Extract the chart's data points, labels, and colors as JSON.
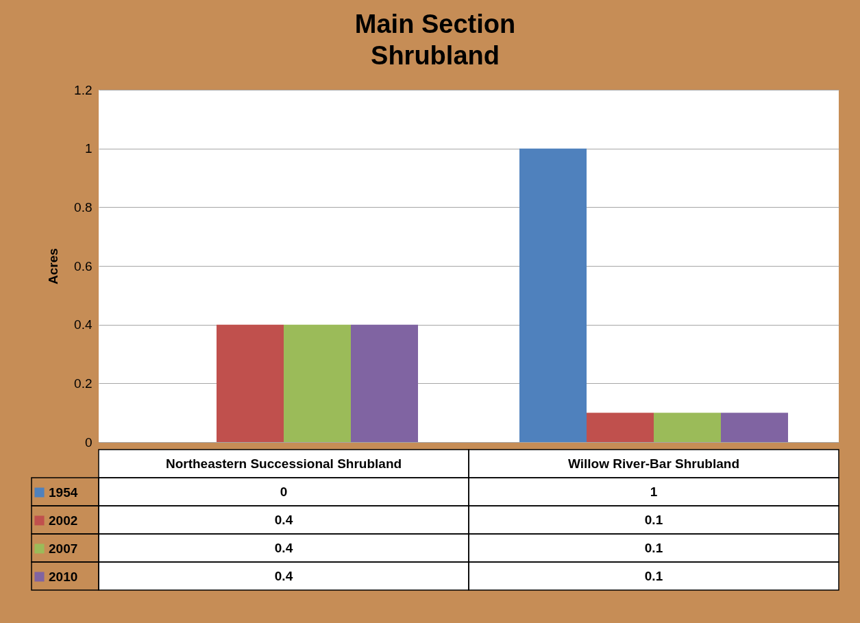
{
  "chart_data": {
    "type": "bar",
    "title": "Main Section",
    "subtitle": "Shrubland",
    "ylabel": "Acres",
    "categories": [
      "Northeastern Successional Shrubland",
      "Willow River-Bar Shrubland"
    ],
    "series": [
      {
        "name": "1954",
        "color": "#4f81bd",
        "values": [
          0,
          1
        ]
      },
      {
        "name": "2002",
        "color": "#c0504d",
        "values": [
          0.4,
          0.1
        ]
      },
      {
        "name": "2007",
        "color": "#9bbb59",
        "values": [
          0.4,
          0.1
        ]
      },
      {
        "name": "2010",
        "color": "#8064a2",
        "values": [
          0.4,
          0.1
        ]
      }
    ],
    "ylim": [
      0,
      1.2
    ],
    "yticks": [
      0,
      0.2,
      0.4,
      0.6,
      0.8,
      1,
      1.2
    ],
    "grid": "y",
    "legend": "bottom left",
    "data_labels": true
  }
}
